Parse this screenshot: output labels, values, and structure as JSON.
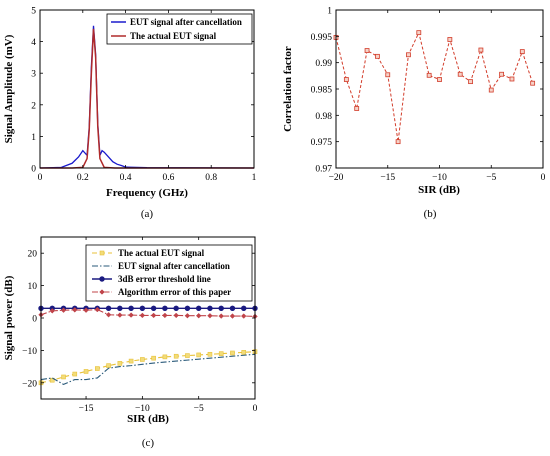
{
  "chart_data": [
    {
      "id": "a",
      "type": "line",
      "caption": "(a)",
      "xlabel": "Frequency (GHz)",
      "ylabel": "Signal Amplitude (mV)",
      "xlim": [
        0,
        1
      ],
      "ylim": [
        0,
        5
      ],
      "xticks": [
        0,
        0.2,
        0.4,
        0.6,
        0.8,
        1
      ],
      "yticks": [
        0,
        1,
        2,
        3,
        4,
        5
      ],
      "legend_position": "top-right",
      "series": [
        {
          "name": "EUT signal after cancellation",
          "color": "#1a1acc",
          "x": [
            0,
            0.1,
            0.15,
            0.18,
            0.2,
            0.22,
            0.23,
            0.24,
            0.25,
            0.26,
            0.27,
            0.28,
            0.29,
            0.3,
            0.32,
            0.34,
            0.36,
            0.38,
            0.4,
            0.5,
            1.0
          ],
          "y": [
            0,
            0.02,
            0.15,
            0.35,
            0.55,
            0.4,
            1.3,
            3.2,
            4.5,
            3.6,
            1.4,
            0.4,
            0.55,
            0.5,
            0.35,
            0.2,
            0.12,
            0.08,
            0.03,
            0.01,
            0
          ]
        },
        {
          "name": "The actual EUT signal",
          "color": "#b02a2a",
          "x": [
            0,
            0.15,
            0.2,
            0.22,
            0.23,
            0.24,
            0.25,
            0.26,
            0.27,
            0.28,
            0.3,
            0.35,
            1.0
          ],
          "y": [
            0,
            0,
            0.02,
            0.3,
            1.2,
            3.0,
            4.4,
            3.5,
            1.3,
            0.3,
            0.02,
            0,
            0
          ]
        }
      ]
    },
    {
      "id": "b",
      "type": "line",
      "caption": "(b)",
      "xlabel": "SIR (dB)",
      "ylabel": "Correlation factor",
      "xlim": [
        -20,
        0
      ],
      "ylim": [
        0.97,
        1.0
      ],
      "xticks": [
        -20,
        -15,
        -10,
        -5,
        0
      ],
      "yticks": [
        0.97,
        0.975,
        0.98,
        0.985,
        0.99,
        0.995,
        1
      ],
      "ytick_labels": [
        "0.97",
        "0.975",
        "0.98",
        "0.985",
        "0.99",
        "0.995",
        "1"
      ],
      "series": [
        {
          "color": "#d23c2a",
          "x": [
            -20,
            -19,
            -18,
            -17,
            -16,
            -15,
            -14,
            -13,
            -12,
            -11,
            -10,
            -9,
            -8,
            -7,
            -6,
            -5,
            -4,
            -3,
            -2,
            -1
          ],
          "y": [
            0.9948,
            0.9868,
            0.9813,
            0.9923,
            0.9912,
            0.9877,
            0.975,
            0.9915,
            0.9957,
            0.9876,
            0.9868,
            0.9944,
            0.9878,
            0.9864,
            0.9924,
            0.9848,
            0.9878,
            0.9869,
            0.9921,
            0.9861
          ]
        }
      ]
    },
    {
      "id": "c",
      "type": "line",
      "caption": "(c)",
      "xlabel": "SIR (dB)",
      "ylabel": "Signal power (dB)",
      "xlim": [
        -19,
        0
      ],
      "ylim": [
        -25,
        25
      ],
      "xticks": [
        -15,
        -10,
        -5,
        0
      ],
      "yticks": [
        -20,
        -10,
        0,
        10,
        20
      ],
      "legend_position": "top-right",
      "series": [
        {
          "name": "The actual EUT signal",
          "color": "#e8c23a",
          "x": [
            -19,
            -18,
            -17,
            -16,
            -15,
            -14,
            -13,
            -12,
            -11,
            -10,
            -9,
            -8,
            -7,
            -6,
            -5,
            -4,
            -3,
            -2,
            -1,
            0
          ],
          "y": [
            -20,
            -19.2,
            -18.2,
            -17.3,
            -16.5,
            -15.6,
            -14.7,
            -14,
            -13.3,
            -12.8,
            -12.4,
            -12,
            -11.8,
            -11.6,
            -11.4,
            -11.2,
            -11,
            -10.8,
            -10.6,
            -10.4
          ]
        },
        {
          "name": "EUT signal after cancellation",
          "color": "#2a5a7a",
          "x": [
            -19,
            -18,
            -17,
            -16,
            -15,
            -14,
            -13,
            -12,
            -11,
            -10,
            -9,
            -8,
            -7,
            -6,
            -5,
            -4,
            -3,
            -2,
            -1,
            0
          ],
          "y": [
            -19,
            -18.5,
            -20.5,
            -19,
            -19,
            -18.5,
            -15.5,
            -15,
            -14.7,
            -14.3,
            -13.9,
            -13.6,
            -13.3,
            -13,
            -12.7,
            -12.4,
            -12.1,
            -11.8,
            -11.5,
            -11.2
          ]
        },
        {
          "name": "3dB error threshold line",
          "color": "#1a1a80",
          "x": [
            -19,
            -18,
            -17,
            -16,
            -15,
            -14,
            -13,
            -12,
            -11,
            -10,
            -9,
            -8,
            -7,
            -6,
            -5,
            -4,
            -3,
            -2,
            -1,
            0
          ],
          "y": [
            3,
            3,
            3,
            3,
            3,
            3,
            3,
            3,
            3,
            3,
            3,
            3,
            3,
            3,
            3,
            3,
            3,
            3,
            3,
            3
          ]
        },
        {
          "name": "Algorithm error of this paper",
          "color": "#c0444a",
          "x": [
            -19,
            -18,
            -17,
            -16,
            -15,
            -14,
            -13,
            -12,
            -11,
            -10,
            -9,
            -8,
            -7,
            -6,
            -5,
            -4,
            -3,
            -2,
            -1,
            0
          ],
          "y": [
            1,
            2.2,
            2.4,
            2.5,
            2.4,
            2.6,
            1,
            0.9,
            0.9,
            0.8,
            0.8,
            0.8,
            0.8,
            0.7,
            0.7,
            0.7,
            0.6,
            0.6,
            0.6,
            0.5
          ]
        }
      ]
    }
  ]
}
